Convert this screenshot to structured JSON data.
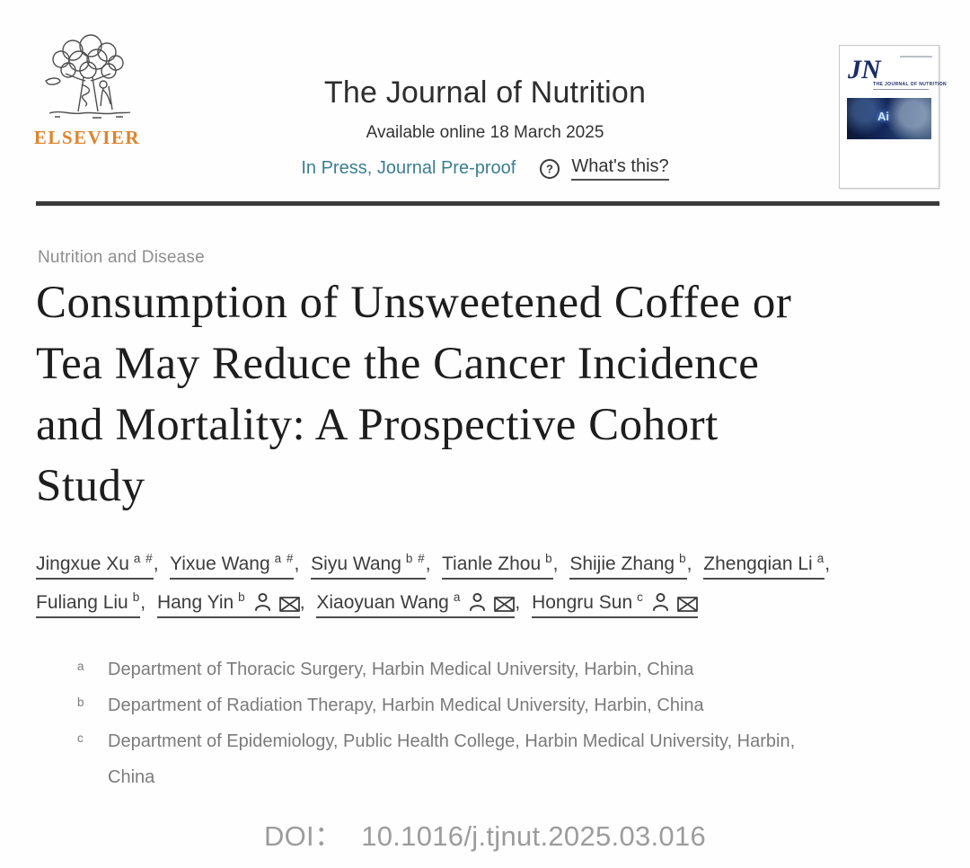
{
  "publisher": {
    "name": "ELSEVIER"
  },
  "header": {
    "journal_title": "The Journal of Nutrition",
    "available_online": "Available online 18 March 2025",
    "status_link": "In Press, Journal Pre-proof",
    "whats_this_label": "What's this?"
  },
  "cover": {
    "logo_text": "JN",
    "journal_name": "THE JOURNAL OF NUTRITION",
    "image_label": "Ai"
  },
  "article": {
    "section_label": "Nutrition and Disease",
    "title_lines": [
      "Consumption of Unsweetened Coffee or",
      "Tea May Reduce the Cancer Incidence",
      "and Mortality: A Prospective Cohort",
      "Study"
    ],
    "authors": [
      {
        "name": "Jingxue Xu",
        "sup": "a #",
        "corresponding": false
      },
      {
        "name": "Yixue Wang",
        "sup": "a #",
        "corresponding": false
      },
      {
        "name": "Siyu Wang",
        "sup": "b #",
        "corresponding": false
      },
      {
        "name": "Tianle Zhou",
        "sup": "b",
        "corresponding": false
      },
      {
        "name": "Shijie Zhang",
        "sup": "b",
        "corresponding": false
      },
      {
        "name": "Zhengqian Li",
        "sup": "a",
        "corresponding": false
      },
      {
        "name": "Fuliang Liu",
        "sup": "b",
        "corresponding": false
      },
      {
        "name": "Hang Yin",
        "sup": "b",
        "corresponding": true
      },
      {
        "name": "Xiaoyuan Wang",
        "sup": "a",
        "corresponding": true
      },
      {
        "name": "Hongru Sun",
        "sup": "c",
        "corresponding": true
      }
    ],
    "affiliations": [
      {
        "sup": "a",
        "text": "Department of Thoracic Surgery, Harbin Medical University, Harbin, China"
      },
      {
        "sup": "b",
        "text": "Department of Radiation Therapy, Harbin Medical University, Harbin, China"
      },
      {
        "sup": "c",
        "text": "Department of Epidemiology, Public Health College, Harbin Medical University, Harbin, China"
      }
    ],
    "doi_label": "DOI：",
    "doi_value": "10.1016/j.tjnut.2025.03.016"
  },
  "icons": {
    "person": "person-icon",
    "mail": "mail-icon",
    "question": "question-circle-icon"
  },
  "colors": {
    "accent_teal": "#3b7e8f",
    "elsevier_orange": "#e0832c",
    "cover_navy": "#1c2c66",
    "divider": "#3a3a3a"
  }
}
